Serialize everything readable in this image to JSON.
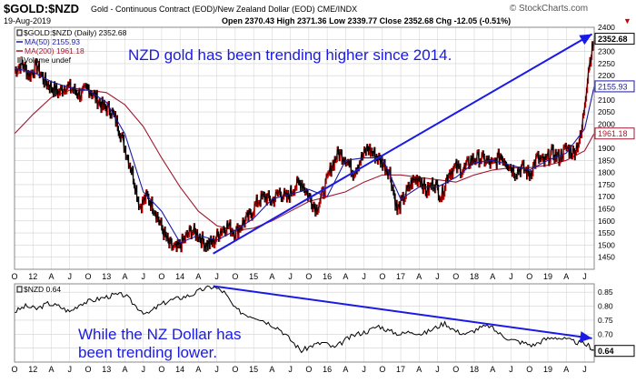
{
  "header": {
    "symbol": "$GOLD:$NZD",
    "description": "Gold - Continuous Contract (EOD)/New Zealand Dollar (EOD) CME/INDX",
    "date": "19-Aug-2019",
    "ohlc": "Open 2370.43  High 2371.36  Low 2339.77  Close 2352.68  Chg -12.05 (-0.51%)",
    "watermark": "© StockCharts.com"
  },
  "colors": {
    "price": "#000000",
    "up_candle": "#cc0000",
    "ma50": "#1a1aa0",
    "ma200": "#a01a30",
    "annotation": "#1a1ae6",
    "grid": "#d0d0d0"
  },
  "chart_data": [
    {
      "type": "line",
      "title": "NZD gold has been trending higher since 2014.",
      "legend": {
        "price": "$GOLD:$NZD (Daily) 2352.68",
        "ma50": "MA(50) 2155.93",
        "ma200": "MA(200) 1961.18",
        "volume": "Volume undef"
      },
      "ylim": [
        1400,
        2400
      ],
      "y_ticks": [
        1450,
        1500,
        1550,
        1600,
        1650,
        1700,
        1750,
        1800,
        1850,
        1900,
        1950,
        2000,
        2050,
        2100,
        2150,
        2200,
        2250,
        2300,
        2350,
        2400
      ],
      "last_labels": {
        "price": "2352.68",
        "ma50": "2155.93",
        "ma200": "1961.18"
      },
      "x_ticks": [
        "O",
        "12",
        "A",
        "J",
        "O",
        "13",
        "A",
        "J",
        "O",
        "14",
        "A",
        "J",
        "O",
        "15",
        "A",
        "J",
        "O",
        "16",
        "A",
        "J",
        "O",
        "17",
        "A",
        "J",
        "O",
        "18",
        "A",
        "J",
        "O",
        "19",
        "A",
        "J"
      ],
      "x_range": [
        2011.75,
        2019.63
      ],
      "series": [
        {
          "name": "$GOLD:$NZD",
          "x": [
            2011.75,
            2011.85,
            2011.95,
            2012.05,
            2012.15,
            2012.25,
            2012.35,
            2012.45,
            2012.55,
            2012.65,
            2012.75,
            2012.85,
            2012.95,
            2013.05,
            2013.15,
            2013.25,
            2013.35,
            2013.45,
            2013.55,
            2013.65,
            2013.75,
            2013.85,
            2013.95,
            2014.05,
            2014.15,
            2014.25,
            2014.35,
            2014.45,
            2014.55,
            2014.65,
            2014.75,
            2014.85,
            2014.95,
            2015.05,
            2015.15,
            2015.25,
            2015.35,
            2015.45,
            2015.55,
            2015.65,
            2015.75,
            2015.85,
            2015.95,
            2016.05,
            2016.15,
            2016.25,
            2016.35,
            2016.45,
            2016.55,
            2016.65,
            2016.75,
            2016.85,
            2016.95,
            2017.05,
            2017.15,
            2017.25,
            2017.35,
            2017.45,
            2017.55,
            2017.65,
            2017.75,
            2017.85,
            2017.95,
            2018.05,
            2018.15,
            2018.25,
            2018.35,
            2018.45,
            2018.55,
            2018.65,
            2018.75,
            2018.85,
            2018.95,
            2019.05,
            2019.15,
            2019.25,
            2019.35,
            2019.45,
            2019.55,
            2019.63
          ],
          "values": [
            2220,
            2250,
            2200,
            2240,
            2180,
            2150,
            2130,
            2160,
            2140,
            2120,
            2150,
            2110,
            2070,
            2060,
            2000,
            1900,
            1800,
            1660,
            1700,
            1650,
            1570,
            1500,
            1480,
            1520,
            1560,
            1540,
            1500,
            1510,
            1560,
            1580,
            1550,
            1590,
            1620,
            1680,
            1700,
            1680,
            1720,
            1690,
            1740,
            1760,
            1700,
            1650,
            1720,
            1820,
            1880,
            1860,
            1800,
            1850,
            1900,
            1870,
            1840,
            1800,
            1640,
            1700,
            1760,
            1780,
            1720,
            1760,
            1700,
            1800,
            1820,
            1810,
            1850,
            1860,
            1850,
            1830,
            1870,
            1840,
            1800,
            1820,
            1790,
            1860,
            1840,
            1880,
            1860,
            1900,
            1880,
            1950,
            2230,
            2352.68
          ]
        },
        {
          "name": "MA(50)",
          "x": [
            2011.75,
            2012.0,
            2012.25,
            2012.5,
            2012.75,
            2013.0,
            2013.25,
            2013.5,
            2013.75,
            2014.0,
            2014.25,
            2014.5,
            2014.75,
            2015.0,
            2015.25,
            2015.5,
            2015.75,
            2016.0,
            2016.25,
            2016.5,
            2016.75,
            2017.0,
            2017.25,
            2017.5,
            2017.75,
            2018.0,
            2018.25,
            2018.5,
            2018.75,
            2019.0,
            2019.25,
            2019.5,
            2019.63
          ],
          "values": [
            2230,
            2215,
            2175,
            2150,
            2140,
            2090,
            1960,
            1720,
            1640,
            1510,
            1540,
            1520,
            1560,
            1610,
            1690,
            1710,
            1730,
            1700,
            1850,
            1860,
            1860,
            1690,
            1740,
            1740,
            1780,
            1840,
            1850,
            1830,
            1810,
            1850,
            1880,
            1980,
            2155.93
          ]
        },
        {
          "name": "MA(200)",
          "x": [
            2011.75,
            2012.0,
            2012.25,
            2012.5,
            2012.75,
            2013.0,
            2013.25,
            2013.5,
            2013.75,
            2014.0,
            2014.25,
            2014.5,
            2014.75,
            2015.0,
            2015.25,
            2015.5,
            2015.75,
            2016.0,
            2016.25,
            2016.5,
            2016.75,
            2017.0,
            2017.25,
            2017.5,
            2017.75,
            2018.0,
            2018.25,
            2018.5,
            2018.75,
            2019.0,
            2019.25,
            2019.5,
            2019.63
          ],
          "values": [
            1960,
            2040,
            2110,
            2140,
            2140,
            2130,
            2080,
            1990,
            1860,
            1740,
            1640,
            1580,
            1560,
            1570,
            1600,
            1640,
            1680,
            1700,
            1720,
            1760,
            1790,
            1790,
            1780,
            1770,
            1760,
            1790,
            1810,
            1820,
            1820,
            1830,
            1850,
            1890,
            1961.18
          ]
        },
        {
          "name": "Trend arrow",
          "x": [
            2014.45,
            2019.6
          ],
          "values": [
            1465,
            2372
          ]
        }
      ]
    },
    {
      "type": "line",
      "title": "While the NZ Dollar has been trending lower.",
      "legend": {
        "price": "$NZD 0.64"
      },
      "ylim": [
        0.6,
        0.88
      ],
      "y_ticks": [
        0.65,
        0.7,
        0.75,
        0.8,
        0.85
      ],
      "y_tick_labels": [
        "",
        "0.70",
        "0.75",
        "0.80",
        "0.85"
      ],
      "last_label": "0.64",
      "x_ticks": [
        "O",
        "12",
        "A",
        "J",
        "O",
        "13",
        "A",
        "J",
        "O",
        "14",
        "A",
        "J",
        "O",
        "15",
        "A",
        "J",
        "O",
        "16",
        "A",
        "J",
        "O",
        "17",
        "A",
        "J",
        "O",
        "18",
        "A",
        "J",
        "O",
        "19",
        "A",
        "J"
      ],
      "x_range": [
        2011.75,
        2019.63
      ],
      "series": [
        {
          "name": "$NZD",
          "x": [
            2011.75,
            2011.9,
            2012.05,
            2012.2,
            2012.35,
            2012.5,
            2012.65,
            2012.8,
            2012.95,
            2013.1,
            2013.25,
            2013.4,
            2013.55,
            2013.7,
            2013.85,
            2014.0,
            2014.15,
            2014.3,
            2014.45,
            2014.6,
            2014.75,
            2014.9,
            2015.05,
            2015.2,
            2015.35,
            2015.5,
            2015.65,
            2015.8,
            2015.95,
            2016.1,
            2016.25,
            2016.4,
            2016.55,
            2016.7,
            2016.85,
            2017.0,
            2017.15,
            2017.3,
            2017.45,
            2017.6,
            2017.75,
            2017.9,
            2018.05,
            2018.2,
            2018.35,
            2018.5,
            2018.65,
            2018.8,
            2018.95,
            2019.1,
            2019.25,
            2019.4,
            2019.55,
            2019.63
          ],
          "values": [
            0.78,
            0.8,
            0.79,
            0.81,
            0.8,
            0.78,
            0.81,
            0.82,
            0.83,
            0.84,
            0.84,
            0.8,
            0.77,
            0.8,
            0.82,
            0.83,
            0.84,
            0.86,
            0.87,
            0.85,
            0.79,
            0.77,
            0.76,
            0.74,
            0.72,
            0.68,
            0.64,
            0.66,
            0.67,
            0.65,
            0.68,
            0.7,
            0.71,
            0.73,
            0.71,
            0.7,
            0.71,
            0.7,
            0.72,
            0.74,
            0.71,
            0.7,
            0.72,
            0.73,
            0.7,
            0.68,
            0.67,
            0.66,
            0.68,
            0.69,
            0.68,
            0.67,
            0.66,
            0.64
          ]
        },
        {
          "name": "Trend arrow",
          "x": [
            2014.45,
            2019.6
          ],
          "values": [
            0.872,
            0.685
          ]
        }
      ]
    }
  ]
}
